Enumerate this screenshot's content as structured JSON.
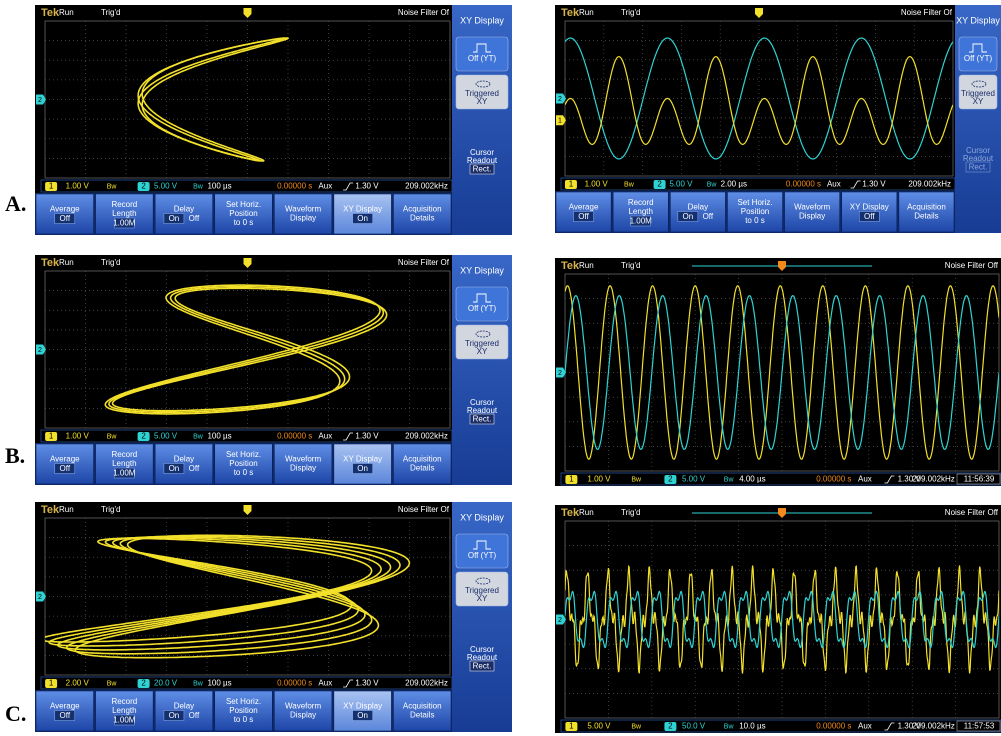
{
  "figure_labels": [
    "A.",
    "B.",
    "C."
  ],
  "screens": [
    {
      "brand": "Tek",
      "run": "Run",
      "trigger": "Trig'd",
      "filter": "Noise Filter Of",
      "side_menu": {
        "title": "XY Display",
        "options": [
          [
            "Off (YT)"
          ],
          [
            "Triggered",
            "XY"
          ]
        ],
        "cursor": [
          "Cursor",
          "Readout"
        ],
        "cursor_value": "Rect."
      },
      "markers": [
        "2"
      ],
      "status": {
        "ch1": "1",
        "ch1_scale": "1.00 V",
        "ch1_bw": "Bw",
        "ch2": "2",
        "ch2_scale": "5.00 V",
        "ch2_bw": "Bw",
        "timebase": "100 µs",
        "position": "0.00000 s",
        "source": "Aux",
        "level": "1.30 V",
        "frequency": "209.002kHz"
      },
      "menu": [
        {
          "lines": [
            "Average"
          ],
          "values": [
            "Off"
          ]
        },
        {
          "lines": [
            "Record",
            "Length"
          ],
          "values": [
            "1.00M"
          ]
        },
        {
          "lines": [
            "Delay"
          ],
          "values": [
            "On",
            "Off"
          ]
        },
        {
          "lines": [
            "Set Horiz.",
            "Position",
            "to 0 s"
          ]
        },
        {
          "lines": [
            "Waveform",
            "Display"
          ]
        },
        {
          "lines": [
            "XY Display"
          ],
          "values": [
            "On"
          ]
        },
        {
          "lines": [
            "Acquisition",
            "Details"
          ]
        }
      ]
    },
    {
      "brand": "Tek",
      "run": "Run",
      "trigger": "Trig'd",
      "filter": "Noise Filter Of",
      "side_menu": {
        "title": "XY Display",
        "options": [
          [
            "Off (YT)"
          ],
          [
            "Triggered",
            "XY"
          ]
        ],
        "cursor": [
          "Cursor",
          "Readout"
        ],
        "cursor_value": "Rect."
      },
      "markers": [
        "2",
        "1"
      ],
      "status": {
        "ch1": "1",
        "ch1_scale": "1.00 V",
        "ch1_bw": "Bw",
        "ch2": "2",
        "ch2_scale": "5.00 V",
        "ch2_bw": "Bw",
        "timebase": "2.00 µs",
        "position": "0.00000 s",
        "source": "Aux",
        "level": "1.30 V",
        "frequency": "209.002kHz"
      },
      "menu": [
        {
          "lines": [
            "Average"
          ],
          "values": [
            "Off"
          ]
        },
        {
          "lines": [
            "Record",
            "Length"
          ],
          "values": [
            "1.00M"
          ]
        },
        {
          "lines": [
            "Delay"
          ],
          "values": [
            "On",
            "Off"
          ]
        },
        {
          "lines": [
            "Set Horiz.",
            "Position",
            "to 0 s"
          ]
        },
        {
          "lines": [
            "Waveform",
            "Display"
          ]
        },
        {
          "lines": [
            "XY Display"
          ],
          "values": [
            "Off"
          ]
        },
        {
          "lines": [
            "Acquisition",
            "Details"
          ]
        }
      ]
    },
    {
      "brand": "Tek",
      "run": "Run",
      "trigger": "Trig'd",
      "filter": "Noise Filter Of",
      "side_menu": {
        "title": "XY Display",
        "options": [
          [
            "Off (YT)"
          ],
          [
            "Triggered",
            "XY"
          ]
        ],
        "cursor": [
          "Cursor",
          "Readout"
        ],
        "cursor_value": "Rect."
      },
      "markers": [
        "2"
      ],
      "status": {
        "ch1": "1",
        "ch1_scale": "1.00 V",
        "ch1_bw": "Bw",
        "ch2": "2",
        "ch2_scale": "5.00 V",
        "ch2_bw": "Bw",
        "timebase": "100 µs",
        "position": "0.00000 s",
        "source": "Aux",
        "level": "1.30 V",
        "frequency": "209.002kHz"
      },
      "menu": [
        {
          "lines": [
            "Average"
          ],
          "values": [
            "Off"
          ]
        },
        {
          "lines": [
            "Record",
            "Length"
          ],
          "values": [
            "1.00M"
          ]
        },
        {
          "lines": [
            "Delay"
          ],
          "values": [
            "On",
            "Off"
          ]
        },
        {
          "lines": [
            "Set Horiz.",
            "Position",
            "to 0 s"
          ]
        },
        {
          "lines": [
            "Waveform",
            "Display"
          ]
        },
        {
          "lines": [
            "XY Display"
          ],
          "values": [
            "On"
          ]
        },
        {
          "lines": [
            "Acquisition",
            "Details"
          ]
        }
      ]
    },
    {
      "brand": "Tek",
      "run": "Run",
      "trigger": "Trig'd",
      "filter": "Noise Filter Off",
      "markers": [
        "2"
      ],
      "status": {
        "ch1": "1",
        "ch1_scale": "1.00 V",
        "ch1_bw": "Bw",
        "ch2": "2",
        "ch2_scale": "5.00 V",
        "ch2_bw": "Bw",
        "timebase": "4.00 µs",
        "position": "0.00000 s",
        "source": "Aux",
        "level": "1.30 V",
        "frequency": "209.002kHz",
        "clock": "11:56:39"
      }
    },
    {
      "brand": "Tek",
      "run": "Run",
      "trigger": "Trig'd",
      "filter": "Noise Filter Of",
      "side_menu": {
        "title": "XY Display",
        "options": [
          [
            "Off (YT)"
          ],
          [
            "Triggered",
            "XY"
          ]
        ],
        "cursor": [
          "Cursor",
          "Readout"
        ],
        "cursor_value": "Rect."
      },
      "markers": [
        "2"
      ],
      "status": {
        "ch1": "1",
        "ch1_scale": "2.00 V",
        "ch1_bw": "Bw",
        "ch2": "2",
        "ch2_scale": "20.0 V",
        "ch2_bw": "Bw",
        "timebase": "100 µs",
        "position": "0.00000 s",
        "source": "Aux",
        "level": "1.30 V",
        "frequency": "209.002kHz"
      },
      "menu": [
        {
          "lines": [
            "Average"
          ],
          "values": [
            "Off"
          ]
        },
        {
          "lines": [
            "Record",
            "Length"
          ],
          "values": [
            "1.00M"
          ]
        },
        {
          "lines": [
            "Delay"
          ],
          "values": [
            "On",
            "Off"
          ]
        },
        {
          "lines": [
            "Set Horiz.",
            "Position",
            "to 0 s"
          ]
        },
        {
          "lines": [
            "Waveform",
            "Display"
          ]
        },
        {
          "lines": [
            "XY Display"
          ],
          "values": [
            "On"
          ]
        },
        {
          "lines": [
            "Acquisition",
            "Details"
          ]
        }
      ]
    },
    {
      "brand": "Tek",
      "run": "Run",
      "trigger": "Trig'd",
      "filter": "Noise Filter Off",
      "markers": [
        "2"
      ],
      "status": {
        "ch1": "1",
        "ch1_scale": "5.00 V",
        "ch1_bw": "Bw",
        "ch2": "2",
        "ch2_scale": "50.0 V",
        "ch2_bw": "Bw",
        "timebase": "10.0 µs",
        "position": "0.00000 s",
        "source": "Aux",
        "level": "1.30 V",
        "frequency": "209.002kHz",
        "clock": "11:57:53"
      }
    }
  ]
}
